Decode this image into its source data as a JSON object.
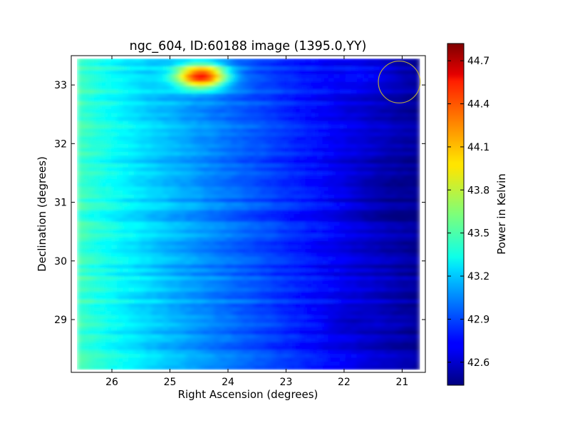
{
  "chart_data": {
    "type": "heatmap",
    "title": "ngc_604, ID:60188 image (1395.0,YY)",
    "xlabel": "Right Ascension (degrees)",
    "ylabel": "Declination (degrees)",
    "xlim": [
      26.7,
      20.6
    ],
    "ylim": [
      28.1,
      33.5
    ],
    "xticks": [
      26,
      25,
      24,
      23,
      22,
      21
    ],
    "xtick_labels": [
      "26",
      "25",
      "24",
      "23",
      "22",
      "21"
    ],
    "yticks": [
      29,
      30,
      31,
      32,
      33
    ],
    "ytick_labels": [
      "29",
      "30",
      "31",
      "32",
      "33"
    ],
    "colorbar": {
      "label": "Power in Kelvin",
      "range": [
        42.44,
        44.82
      ],
      "ticks": [
        42.6,
        42.9,
        43.2,
        43.5,
        43.8,
        44.1,
        44.4,
        44.7
      ],
      "tick_labels": [
        "42.6",
        "42.9",
        "43.2",
        "43.5",
        "43.8",
        "44.1",
        "44.4",
        "44.7"
      ],
      "colormap": "jet"
    },
    "features": [
      {
        "kind": "hotspot",
        "ra": 24.45,
        "dec": 33.15,
        "peak": 44.8
      },
      {
        "kind": "gradient",
        "from_ra": 26.6,
        "to_ra": 20.7,
        "from_value": 43.5,
        "to_value": 42.5
      }
    ],
    "circle_marker": {
      "ra": 21.05,
      "dec": 33.05,
      "radius_deg": 0.36,
      "color": "#b5a642"
    },
    "grid": false
  }
}
